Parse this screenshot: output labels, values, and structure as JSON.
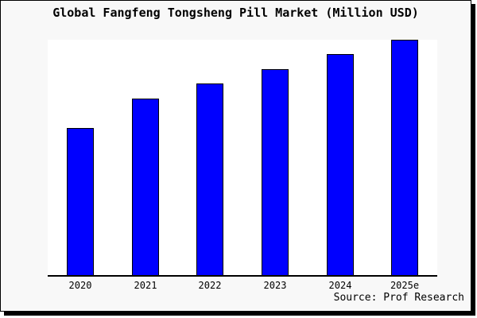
{
  "chart": {
    "title": "Global Fangfeng Tongsheng Pill Market (Million USD)",
    "source": "Source: Prof Research",
    "colors": {
      "bar_fill": "#0000FF",
      "bar_edge": "#000000",
      "frame_background": "#F8F8F8",
      "plot_background": "#FFFFFF",
      "frame_border": "#000000",
      "text": "#000000"
    }
  },
  "chart_data": {
    "type": "bar",
    "title": "Global Fangfeng Tongsheng Pill Market (Million USD)",
    "categories": [
      "2020",
      "2021",
      "2022",
      "2023",
      "2024",
      "2025e"
    ],
    "values": [
      62.6,
      75.1,
      81.5,
      87.5,
      93.9,
      100
    ],
    "unit": "relative index, 2025e = 100 (y-axis has no labels or gridlines in source image)",
    "xlabel": "",
    "ylabel": "",
    "ylim": [
      0,
      100.3
    ],
    "grid": false,
    "legend": "none",
    "annotations": [
      "Source: Prof Research"
    ]
  }
}
